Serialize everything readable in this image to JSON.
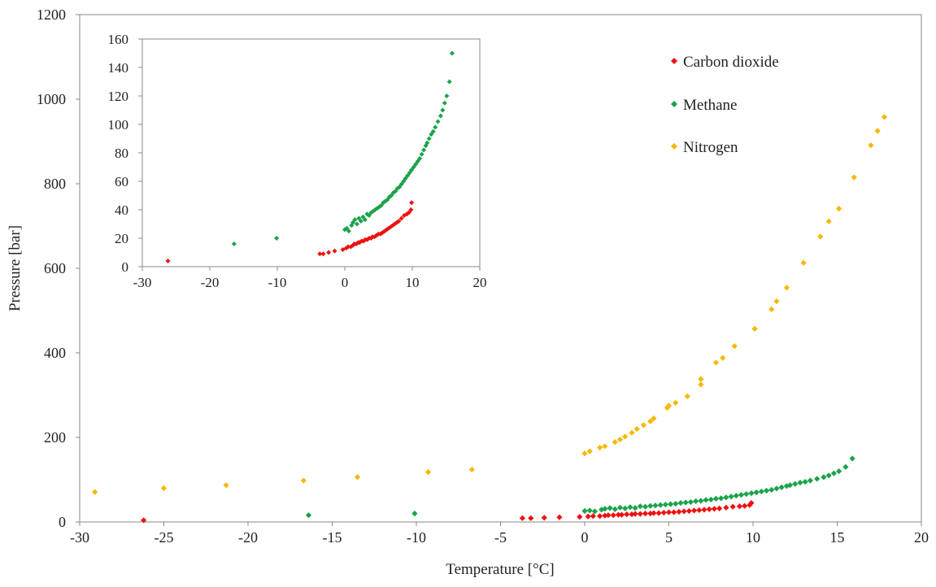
{
  "chart_data": [
    {
      "name": "main",
      "type": "scatter",
      "xlabel": "Temperature  [°C]",
      "ylabel": "Pressure [bar]",
      "xlim": [
        -30,
        20
      ],
      "ylim": [
        0,
        1200
      ],
      "xticks": [
        -30,
        -25,
        -20,
        -15,
        -10,
        -5,
        0,
        5,
        10,
        15,
        20
      ],
      "yticks": [
        0,
        200,
        400,
        600,
        800,
        1000,
        1200
      ],
      "xtick_labels": [
        "-30",
        "-25",
        "-20",
        "-15",
        "-10",
        "-5",
        "0",
        "5",
        "10",
        "15",
        "20"
      ],
      "ytick_labels": [
        "0",
        "200",
        "400",
        "600",
        "800",
        "1000",
        "1200"
      ],
      "grid": false,
      "legend": "top-right",
      "series": [
        {
          "name": "Carbon dioxide",
          "color": "#ee1111",
          "x": [
            -26.2,
            -3.7,
            -3.2,
            -2.4,
            -1.5,
            -0.3,
            0.2,
            0.5,
            0.9,
            1.2,
            1.4,
            1.7,
            2.0,
            2.2,
            2.5,
            2.8,
            3.0,
            3.3,
            3.6,
            3.9,
            4.1,
            4.4,
            4.7,
            5.0,
            5.3,
            5.6,
            5.9,
            6.2,
            6.5,
            6.8,
            7.1,
            7.4,
            7.7,
            8.0,
            8.4,
            8.8,
            9.2,
            9.5,
            9.8,
            9.9
          ],
          "y": [
            4,
            9,
            9,
            10,
            11,
            12,
            13,
            14,
            14,
            15,
            16,
            16,
            17,
            17,
            18,
            18,
            19,
            19,
            20,
            20,
            21,
            21,
            22,
            23,
            23,
            24,
            25,
            26,
            27,
            28,
            29,
            30,
            31,
            32,
            34,
            36,
            37,
            38,
            40,
            45
          ]
        },
        {
          "name": "Methane",
          "color": "#1aa34a",
          "x": [
            -16.4,
            -10.1,
            0.0,
            0.3,
            0.6,
            1.0,
            1.2,
            1.5,
            1.8,
            2.1,
            2.4,
            2.7,
            3.0,
            3.3,
            3.6,
            3.9,
            4.2,
            4.5,
            4.8,
            5.1,
            5.4,
            5.7,
            6.0,
            6.3,
            6.6,
            6.9,
            7.2,
            7.5,
            7.8,
            8.1,
            8.4,
            8.7,
            9.0,
            9.3,
            9.6,
            9.9,
            10.2,
            10.5,
            10.8,
            11.1,
            11.4,
            11.7,
            12.0,
            12.2,
            12.5,
            12.8,
            13.1,
            13.4,
            13.8,
            14.2,
            14.5,
            14.8,
            15.1,
            15.5,
            15.9
          ],
          "y": [
            16,
            20,
            26,
            27,
            25,
            29,
            31,
            33,
            30,
            34,
            32,
            35,
            33,
            37,
            36,
            38,
            39,
            40,
            41,
            42,
            43,
            45,
            46,
            47,
            49,
            50,
            52,
            53,
            55,
            56,
            58,
            60,
            62,
            64,
            66,
            68,
            70,
            72,
            74,
            76,
            79,
            82,
            85,
            87,
            90,
            93,
            95,
            98,
            102,
            106,
            110,
            115,
            120,
            130,
            150
          ]
        },
        {
          "name": "Nitrogen",
          "color": "#f7b800",
          "x": [
            -29.1,
            -25.0,
            -21.3,
            -16.7,
            -13.5,
            -9.3,
            -6.7,
            0.0,
            0.3,
            0.9,
            1.2,
            1.8,
            2.1,
            2.4,
            2.8,
            3.1,
            3.5,
            3.9,
            4.1,
            4.9,
            5.0,
            5.4,
            6.1,
            6.9,
            6.9,
            7.8,
            8.2,
            8.9,
            10.1,
            11.1,
            11.4,
            12.0,
            13.0,
            14.0,
            14.5,
            15.1,
            16.0,
            17.0,
            17.4,
            17.8
          ],
          "y": [
            71,
            80,
            87,
            98,
            106,
            118,
            124,
            162,
            167,
            176,
            179,
            189,
            195,
            202,
            211,
            220,
            229,
            238,
            245,
            270,
            275,
            282,
            297,
            325,
            338,
            377,
            388,
            416,
            457,
            503,
            522,
            554,
            613,
            675,
            711,
            741,
            815,
            891,
            925,
            958
          ]
        }
      ]
    },
    {
      "name": "inset",
      "type": "scatter",
      "xlim": [
        -30,
        20
      ],
      "ylim": [
        0,
        160
      ],
      "xticks": [
        -30,
        -20,
        -10,
        0,
        10,
        20
      ],
      "yticks": [
        0,
        20,
        40,
        60,
        80,
        100,
        120,
        140,
        160
      ],
      "xtick_labels": [
        "-30",
        "-20",
        "-10",
        "0",
        "10",
        "20"
      ],
      "ytick_labels": [
        "0",
        "20",
        "40",
        "60",
        "80",
        "100",
        "120",
        "140",
        "160"
      ],
      "grid": false,
      "series_ref": [
        "Carbon dioxide",
        "Methane"
      ]
    }
  ]
}
